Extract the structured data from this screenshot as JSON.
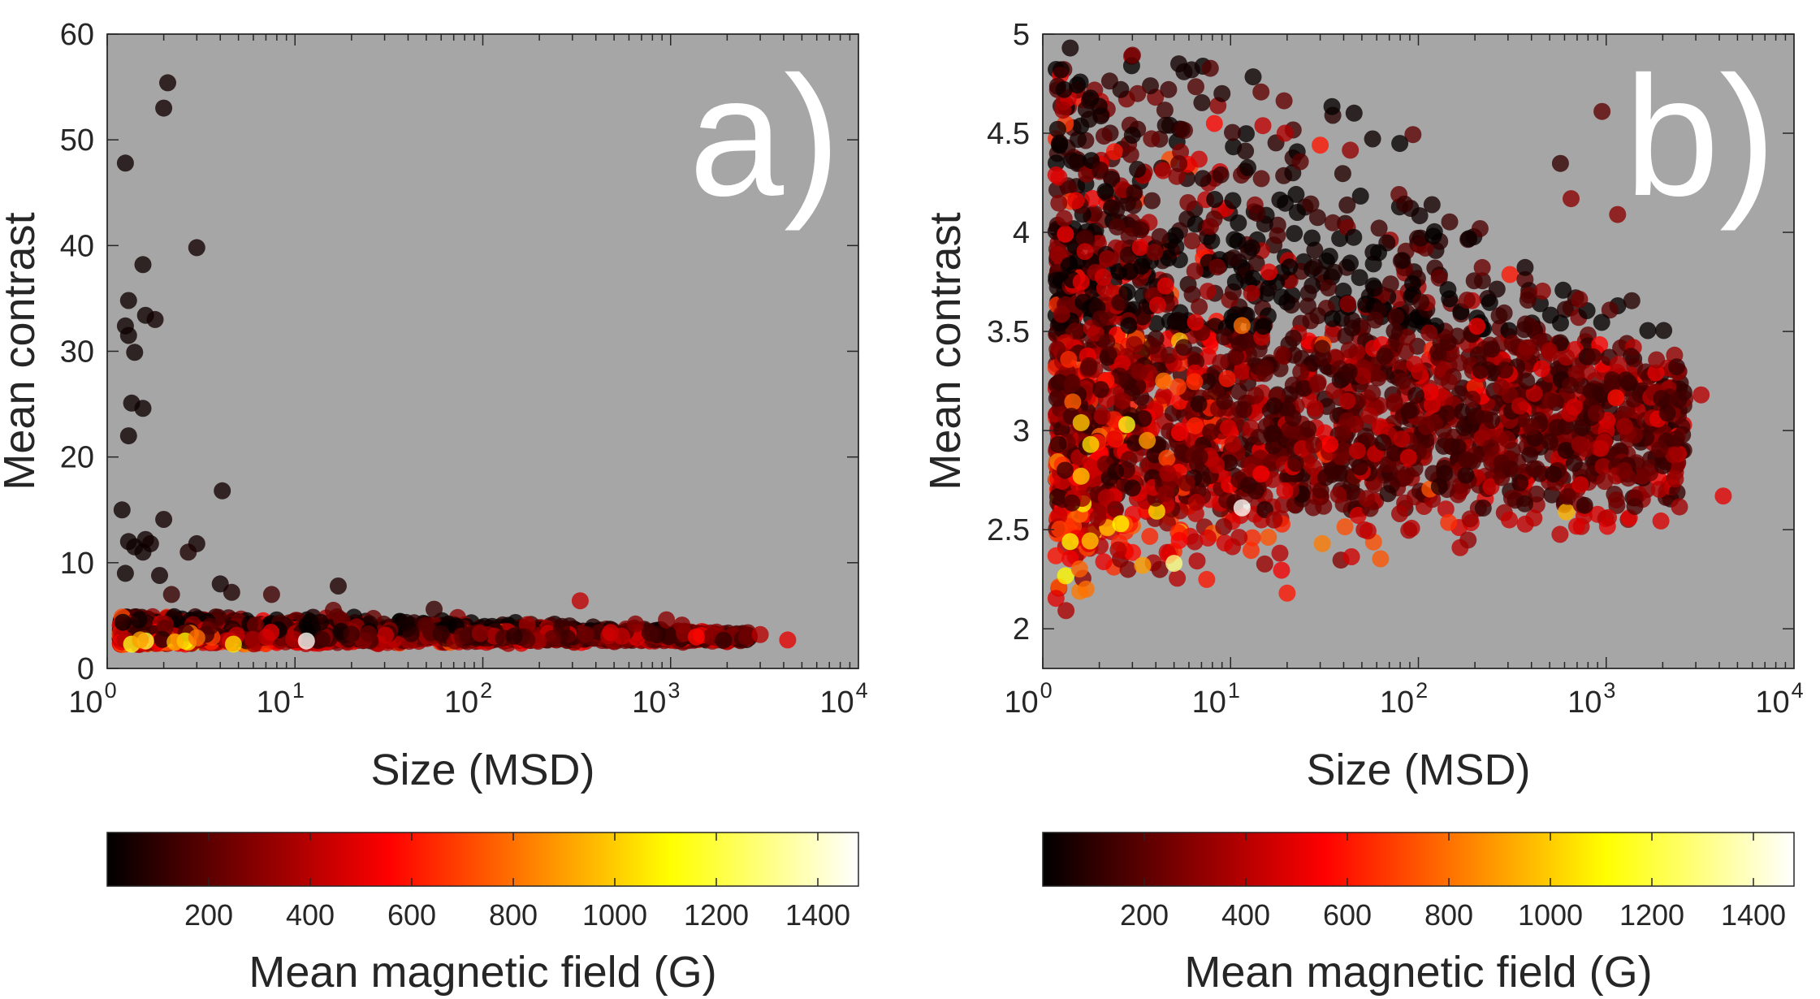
{
  "chart_data": [
    {
      "type": "scatter",
      "panel_label": "a)",
      "xlabel": "Size (MSD)",
      "ylabel": "Mean contrast",
      "xscale": "log",
      "xlim": [
        1,
        10000
      ],
      "ylim": [
        0,
        60
      ],
      "x_tick_labels": [
        {
          "value": 1,
          "base": "10",
          "exp": "0"
        },
        {
          "value": 10,
          "base": "10",
          "exp": "1"
        },
        {
          "value": 100,
          "base": "10",
          "exp": "2"
        },
        {
          "value": 1000,
          "base": "10",
          "exp": "3"
        },
        {
          "value": 10000,
          "base": "10",
          "exp": "4"
        }
      ],
      "y_ticks": [
        0,
        10,
        20,
        30,
        40,
        50,
        60
      ],
      "y_tick_labels": [
        "0",
        "10",
        "20",
        "30",
        "40",
        "50",
        "60"
      ],
      "background": "#a6a6a6",
      "colormap": "hot",
      "color_range": [
        0,
        1480
      ],
      "colorbar": {
        "label": "Mean magnetic field (G)",
        "ticks": [
          200,
          400,
          600,
          800,
          1000,
          1200,
          1400
        ],
        "tick_labels": [
          "200",
          "400",
          "600",
          "800",
          "1000",
          "1200",
          "1400"
        ]
      },
      "points": [
        [
          2.1,
          55.4,
          40
        ],
        [
          2.0,
          53.0,
          40
        ],
        [
          1.25,
          47.8,
          30
        ],
        [
          3.0,
          39.8,
          40
        ],
        [
          1.55,
          38.2,
          30
        ],
        [
          1.3,
          34.8,
          30
        ],
        [
          1.6,
          33.4,
          30
        ],
        [
          1.8,
          33.0,
          40
        ],
        [
          1.25,
          32.4,
          30
        ],
        [
          1.3,
          31.5,
          30
        ],
        [
          1.4,
          29.9,
          30
        ],
        [
          1.35,
          25.1,
          30
        ],
        [
          1.55,
          24.6,
          30
        ],
        [
          1.3,
          22.0,
          30
        ],
        [
          4.1,
          16.8,
          40
        ],
        [
          1.2,
          15.0,
          30
        ],
        [
          2.0,
          14.1,
          40
        ],
        [
          1.3,
          12.0,
          30
        ],
        [
          1.6,
          12.2,
          30
        ],
        [
          3.0,
          11.8,
          40
        ],
        [
          1.4,
          11.5,
          30
        ],
        [
          1.7,
          11.8,
          40
        ],
        [
          1.55,
          11.0,
          30
        ],
        [
          2.7,
          11.0,
          60
        ],
        [
          1.25,
          9.0,
          30
        ],
        [
          1.9,
          8.8,
          40
        ],
        [
          4.0,
          8.0,
          40
        ],
        [
          17.0,
          7.8,
          70
        ],
        [
          4.6,
          7.2,
          60
        ],
        [
          7.5,
          7.0,
          140
        ],
        [
          2.2,
          7.0,
          120
        ],
        [
          330,
          6.4,
          420
        ],
        [
          55,
          5.6,
          120
        ],
        [
          16,
          5.5,
          220
        ],
        [
          11.5,
          2.6,
          1470
        ],
        [
          1.35,
          2.3,
          1150
        ],
        [
          1.6,
          2.6,
          1200
        ],
        [
          2.6,
          2.6,
          1100
        ],
        [
          4.7,
          2.3,
          1050
        ],
        [
          1.5,
          2.7,
          900
        ],
        [
          3.0,
          2.9,
          800
        ],
        [
          2.3,
          2.5,
          950
        ],
        [
          4200,
          2.7,
          500
        ],
        [
          3000,
          3.2,
          400
        ],
        [
          950,
          4.6,
          300
        ],
        [
          1150,
          4.1,
          300
        ],
        [
          650,
          4.2,
          300
        ]
      ]
    },
    {
      "type": "scatter",
      "panel_label": "b)",
      "xlabel": "Size (MSD)",
      "ylabel": "Mean contrast",
      "xscale": "log",
      "xlim": [
        1,
        10000
      ],
      "ylim": [
        1.8,
        5
      ],
      "x_tick_labels": [
        {
          "value": 1,
          "base": "10",
          "exp": "0"
        },
        {
          "value": 10,
          "base": "10",
          "exp": "1"
        },
        {
          "value": 100,
          "base": "10",
          "exp": "2"
        },
        {
          "value": 1000,
          "base": "10",
          "exp": "3"
        },
        {
          "value": 10000,
          "base": "10",
          "exp": "4"
        }
      ],
      "y_ticks": [
        2,
        2.5,
        3,
        3.5,
        4,
        4.5,
        5
      ],
      "y_tick_labels": [
        "2",
        "2.5",
        "3",
        "3.5",
        "4",
        "4.5",
        "5"
      ],
      "background": "#a6a6a6",
      "colormap": "hot",
      "color_range": [
        0,
        1480
      ],
      "colorbar": {
        "label": "Mean magnetic field (G)",
        "ticks": [
          200,
          400,
          600,
          800,
          1000,
          1200,
          1400
        ],
        "tick_labels": [
          "200",
          "400",
          "600",
          "800",
          "1000",
          "1200",
          "1400"
        ]
      },
      "points": [
        [
          1.4,
          4.93,
          40
        ],
        [
          1.25,
          4.82,
          30
        ],
        [
          5.3,
          4.85,
          40
        ],
        [
          6.2,
          4.82,
          40
        ],
        [
          9.0,
          4.7,
          60
        ],
        [
          1.3,
          4.72,
          30
        ],
        [
          1.7,
          4.62,
          60
        ],
        [
          2.6,
          4.72,
          60
        ],
        [
          3.2,
          4.7,
          220
        ],
        [
          1.2,
          4.52,
          30
        ],
        [
          3.0,
          4.49,
          40
        ],
        [
          4.5,
          4.54,
          60
        ],
        [
          5.5,
          4.52,
          120
        ],
        [
          12,
          4.41,
          60
        ],
        [
          19.5,
          4.5,
          380
        ],
        [
          30,
          4.44,
          600
        ],
        [
          950,
          4.61,
          200
        ],
        [
          1150,
          4.09,
          300
        ],
        [
          650,
          4.17,
          300
        ],
        [
          1.5,
          4.16,
          500
        ],
        [
          11.5,
          2.61,
          1470
        ],
        [
          5.0,
          2.33,
          1300
        ],
        [
          2.6,
          2.53,
          1100
        ],
        [
          3.4,
          2.32,
          900
        ],
        [
          1.6,
          3.04,
          1000
        ],
        [
          2.8,
          3.03,
          1150
        ],
        [
          1.8,
          2.93,
          1050
        ],
        [
          3.6,
          2.95,
          900
        ],
        [
          4.4,
          3.25,
          800
        ],
        [
          1.6,
          2.77,
          1000
        ],
        [
          1.4,
          2.44,
          1100
        ],
        [
          1.7,
          2.2,
          800
        ],
        [
          20,
          2.18,
          600
        ],
        [
          4200,
          2.67,
          500
        ],
        [
          3200,
          3.18,
          400
        ],
        [
          11.5,
          3.53,
          800
        ],
        [
          4.5,
          3.73,
          500
        ],
        [
          16,
          3.8,
          500
        ],
        [
          1.6,
          3.75,
          500
        ],
        [
          1.3,
          4.07,
          300
        ]
      ]
    }
  ]
}
